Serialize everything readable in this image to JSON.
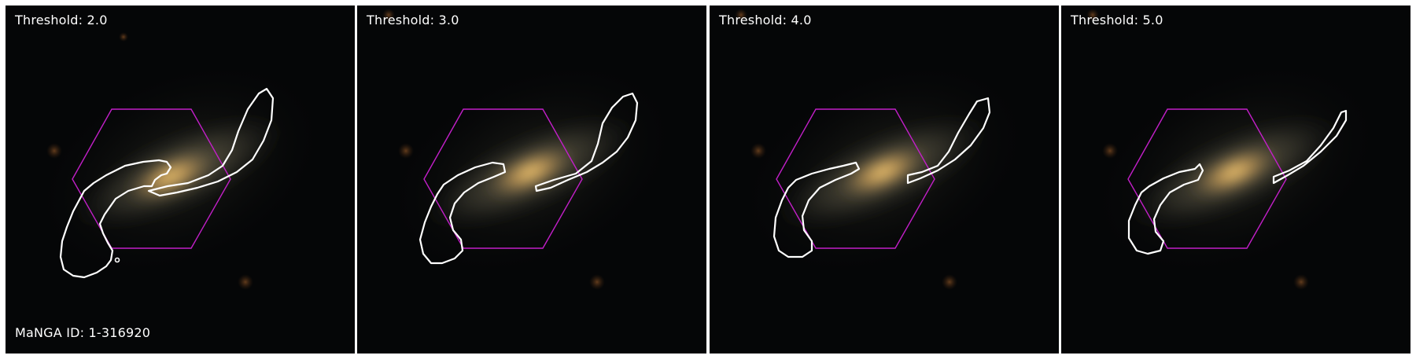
{
  "figure": {
    "panels": [
      {
        "threshold_label": "Threshold: 2.0",
        "threshold": 2.0
      },
      {
        "threshold_label": "Threshold: 3.0",
        "threshold": 3.0
      },
      {
        "threshold_label": "Threshold: 4.0",
        "threshold": 4.0
      },
      {
        "threshold_label": "Threshold: 5.0",
        "threshold": 5.0
      }
    ],
    "galaxy_id_label": "MaNGA ID: 1-316920",
    "colors": {
      "contour": "#ffffff",
      "ifu_hexagon": "#c21fc8",
      "background": "#050607",
      "galaxy_core": "#f2b35a"
    }
  }
}
